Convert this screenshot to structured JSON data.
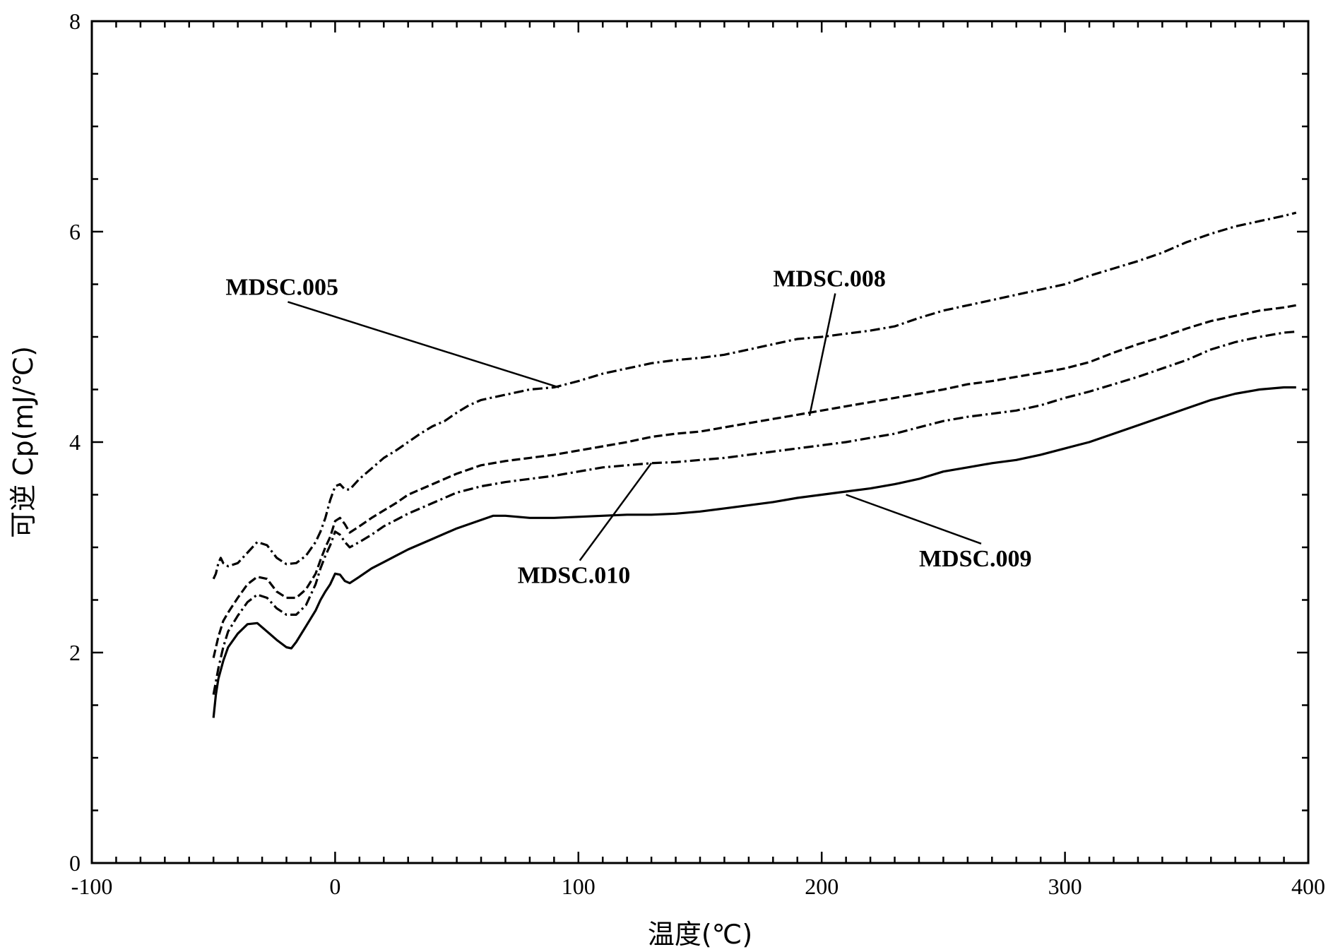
{
  "chart_data": {
    "type": "line",
    "title": "",
    "xlabel": "温度(℃)",
    "ylabel": "可逆 Cp(mJ/℃)",
    "xlim": [
      -100,
      400
    ],
    "ylim": [
      0,
      8
    ],
    "x_ticks": [
      -100,
      0,
      100,
      200,
      300,
      400
    ],
    "y_ticks": [
      0,
      2,
      4,
      6,
      8
    ],
    "x_tick_labels": [
      "-100",
      "0",
      "100",
      "200",
      "300",
      "400"
    ],
    "y_tick_labels": [
      "0",
      "2",
      "4",
      "6",
      "8"
    ],
    "grid": false,
    "legend": "none",
    "series": [
      {
        "name": "MDSC.005",
        "style": "dashdot",
        "x": [
          -50,
          -49,
          -48,
          -47,
          -46,
          -44,
          -40,
          -36,
          -32,
          -28,
          -24,
          -20,
          -16,
          -12,
          -8,
          -6,
          -4,
          -2,
          0,
          2,
          4,
          6,
          10,
          15,
          20,
          25,
          30,
          35,
          40,
          45,
          50,
          55,
          60,
          70,
          80,
          90,
          100,
          110,
          120,
          130,
          140,
          150,
          160,
          170,
          180,
          190,
          200,
          210,
          220,
          230,
          240,
          250,
          260,
          270,
          280,
          290,
          300,
          310,
          320,
          330,
          340,
          350,
          360,
          370,
          380,
          390,
          395
        ],
        "y": [
          2.7,
          2.75,
          2.85,
          2.9,
          2.85,
          2.82,
          2.85,
          2.95,
          3.05,
          3.02,
          2.9,
          2.84,
          2.85,
          2.92,
          3.05,
          3.15,
          3.28,
          3.45,
          3.58,
          3.6,
          3.55,
          3.55,
          3.65,
          3.75,
          3.85,
          3.92,
          4.0,
          4.08,
          4.15,
          4.2,
          4.28,
          4.35,
          4.4,
          4.45,
          4.5,
          4.52,
          4.58,
          4.65,
          4.7,
          4.75,
          4.78,
          4.8,
          4.83,
          4.88,
          4.93,
          4.98,
          5.0,
          5.03,
          5.06,
          5.1,
          5.18,
          5.25,
          5.3,
          5.35,
          5.4,
          5.45,
          5.5,
          5.58,
          5.65,
          5.72,
          5.8,
          5.9,
          5.98,
          6.05,
          6.1,
          6.15,
          6.18
        ]
      },
      {
        "name": "MDSC.008",
        "style": "dashed",
        "x": [
          -50,
          -48,
          -46,
          -44,
          -40,
          -36,
          -32,
          -28,
          -24,
          -20,
          -16,
          -12,
          -8,
          -6,
          -4,
          -2,
          0,
          2,
          4,
          6,
          10,
          15,
          20,
          25,
          30,
          40,
          50,
          60,
          70,
          80,
          90,
          100,
          110,
          120,
          130,
          140,
          150,
          160,
          170,
          180,
          190,
          200,
          210,
          220,
          230,
          240,
          250,
          260,
          270,
          280,
          290,
          300,
          310,
          320,
          330,
          340,
          350,
          360,
          370,
          380,
          390,
          395
        ],
        "y": [
          1.95,
          2.15,
          2.3,
          2.38,
          2.52,
          2.65,
          2.72,
          2.7,
          2.58,
          2.52,
          2.52,
          2.6,
          2.75,
          2.88,
          3.0,
          3.1,
          3.25,
          3.28,
          3.22,
          3.14,
          3.2,
          3.28,
          3.35,
          3.42,
          3.5,
          3.6,
          3.7,
          3.78,
          3.82,
          3.85,
          3.88,
          3.92,
          3.96,
          4.0,
          4.05,
          4.08,
          4.1,
          4.14,
          4.18,
          4.22,
          4.26,
          4.3,
          4.34,
          4.38,
          4.42,
          4.46,
          4.5,
          4.55,
          4.58,
          4.62,
          4.66,
          4.7,
          4.76,
          4.85,
          4.93,
          5.0,
          5.08,
          5.15,
          5.2,
          5.25,
          5.28,
          5.3
        ]
      },
      {
        "name": "MDSC.010",
        "style": "dashdot",
        "x": [
          -50,
          -48,
          -46,
          -44,
          -40,
          -36,
          -32,
          -28,
          -24,
          -20,
          -16,
          -12,
          -8,
          -6,
          -4,
          -2,
          0,
          2,
          4,
          6,
          10,
          15,
          20,
          25,
          30,
          40,
          50,
          60,
          70,
          80,
          90,
          100,
          110,
          120,
          130,
          140,
          150,
          160,
          170,
          180,
          190,
          200,
          210,
          220,
          230,
          240,
          250,
          260,
          270,
          280,
          290,
          300,
          310,
          320,
          330,
          340,
          350,
          360,
          370,
          380,
          390,
          395
        ],
        "y": [
          1.6,
          1.85,
          2.05,
          2.2,
          2.35,
          2.48,
          2.55,
          2.52,
          2.42,
          2.36,
          2.36,
          2.45,
          2.65,
          2.8,
          2.92,
          3.02,
          3.15,
          3.12,
          3.05,
          3.0,
          3.05,
          3.12,
          3.2,
          3.26,
          3.32,
          3.42,
          3.52,
          3.58,
          3.62,
          3.65,
          3.68,
          3.72,
          3.76,
          3.78,
          3.8,
          3.81,
          3.83,
          3.85,
          3.88,
          3.91,
          3.94,
          3.97,
          4.0,
          4.04,
          4.08,
          4.14,
          4.2,
          4.24,
          4.27,
          4.3,
          4.35,
          4.42,
          4.48,
          4.55,
          4.62,
          4.7,
          4.78,
          4.88,
          4.95,
          5.0,
          5.04,
          5.05
        ]
      },
      {
        "name": "MDSC.009",
        "style": "solid",
        "x": [
          -50,
          -49,
          -48,
          -46,
          -44,
          -40,
          -36,
          -32,
          -28,
          -24,
          -20,
          -18,
          -16,
          -12,
          -8,
          -6,
          -4,
          -2,
          0,
          2,
          4,
          6,
          10,
          15,
          20,
          25,
          30,
          40,
          50,
          60,
          65,
          70,
          80,
          90,
          100,
          110,
          120,
          130,
          140,
          150,
          160,
          170,
          180,
          190,
          200,
          210,
          220,
          230,
          240,
          250,
          260,
          270,
          280,
          290,
          300,
          310,
          320,
          330,
          340,
          350,
          360,
          370,
          380,
          390,
          395
        ],
        "y": [
          1.38,
          1.6,
          1.75,
          1.92,
          2.05,
          2.18,
          2.27,
          2.28,
          2.2,
          2.12,
          2.05,
          2.04,
          2.1,
          2.25,
          2.4,
          2.5,
          2.58,
          2.65,
          2.75,
          2.74,
          2.68,
          2.66,
          2.72,
          2.8,
          2.86,
          2.92,
          2.98,
          3.08,
          3.18,
          3.26,
          3.3,
          3.3,
          3.28,
          3.28,
          3.29,
          3.3,
          3.31,
          3.31,
          3.32,
          3.34,
          3.37,
          3.4,
          3.43,
          3.47,
          3.5,
          3.53,
          3.56,
          3.6,
          3.65,
          3.72,
          3.76,
          3.8,
          3.83,
          3.88,
          3.94,
          4.0,
          4.08,
          4.16,
          4.24,
          4.32,
          4.4,
          4.46,
          4.5,
          4.52,
          4.52
        ]
      }
    ],
    "annotations": [
      {
        "series": "MDSC.005",
        "text": "MDSC.005",
        "label_at": [
          -45,
          5.4
        ],
        "points_to": [
          92,
          4.52
        ]
      },
      {
        "series": "MDSC.008",
        "text": "MDSC.008",
        "label_at": [
          180,
          5.48
        ],
        "points_to": [
          195,
          4.25
        ]
      },
      {
        "series": "MDSC.010",
        "text": "MDSC.010",
        "label_at": [
          75,
          2.66
        ],
        "points_to": [
          130,
          3.8
        ]
      },
      {
        "series": "MDSC.009",
        "text": "MDSC.009",
        "label_at": [
          240,
          2.82
        ],
        "points_to": [
          210,
          3.5
        ]
      }
    ]
  }
}
